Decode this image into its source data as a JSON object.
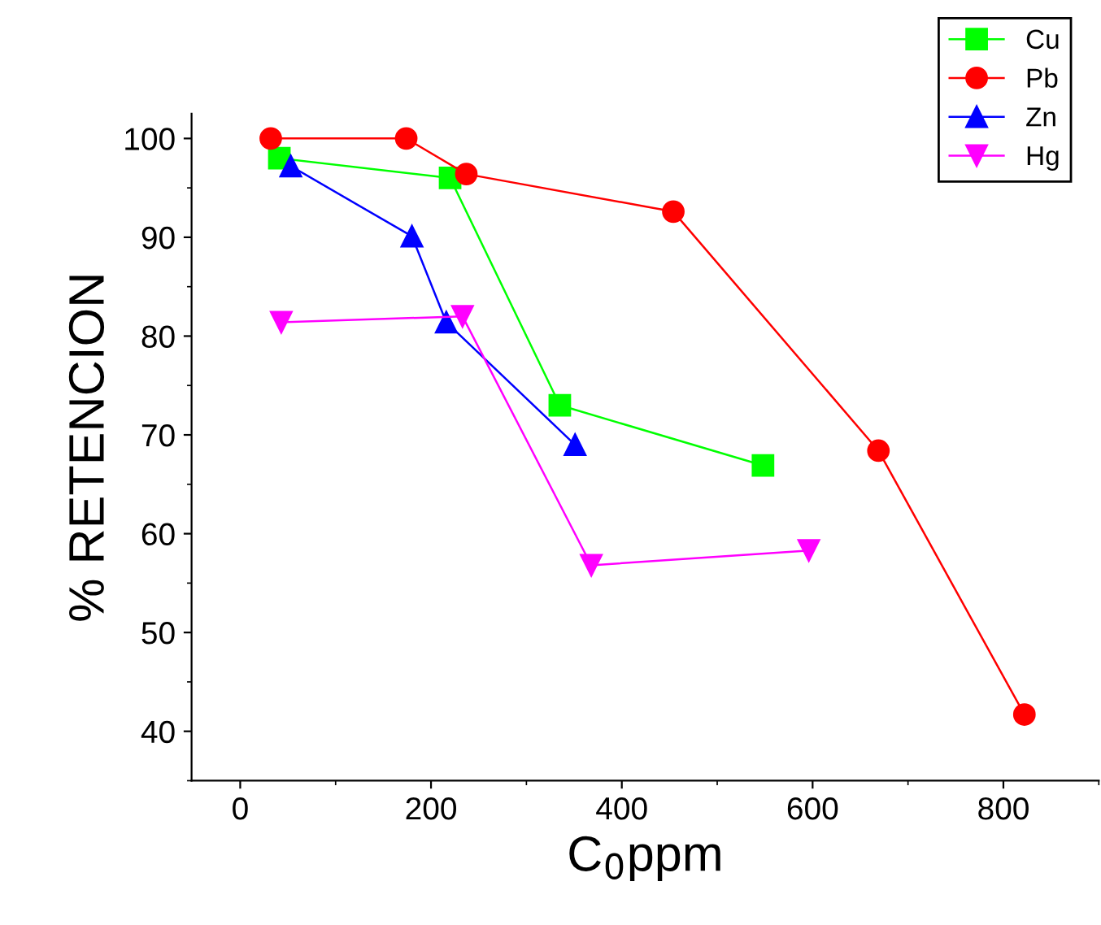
{
  "chart_data": {
    "type": "line",
    "xlabel": "C$_{0}$ppm",
    "ylabel": "% RETENCION",
    "xlim": [
      -51,
      900
    ],
    "ylim": [
      35,
      102.5
    ],
    "xticks": [
      0,
      200,
      400,
      600,
      800
    ],
    "yticks": [
      40,
      50,
      60,
      70,
      80,
      90,
      100
    ],
    "grid": false,
    "legend": "top right",
    "series": [
      {
        "name": "Cu",
        "color": "#00ff00",
        "marker": "square",
        "x": [
          41,
          220,
          335,
          548
        ],
        "values": [
          98.0,
          96.0,
          73.0,
          66.9
        ]
      },
      {
        "name": "Pb",
        "color": "#ff0000",
        "marker": "circle",
        "x": [
          32,
          174,
          237,
          454,
          669,
          822
        ],
        "values": [
          100,
          100,
          96.4,
          92.6,
          68.4,
          41.7
        ]
      },
      {
        "name": "Zn",
        "color": "#0000ff",
        "marker": "triangle",
        "x": [
          53,
          180,
          216,
          351
        ],
        "values": [
          97.2,
          90.1,
          81.4,
          69.0
        ]
      },
      {
        "name": "Hg",
        "color": "#ff00ff",
        "marker": "triangle_down",
        "x": [
          43,
          233,
          368,
          596
        ],
        "values": [
          81.4,
          82.0,
          56.8,
          58.3
        ]
      }
    ]
  }
}
